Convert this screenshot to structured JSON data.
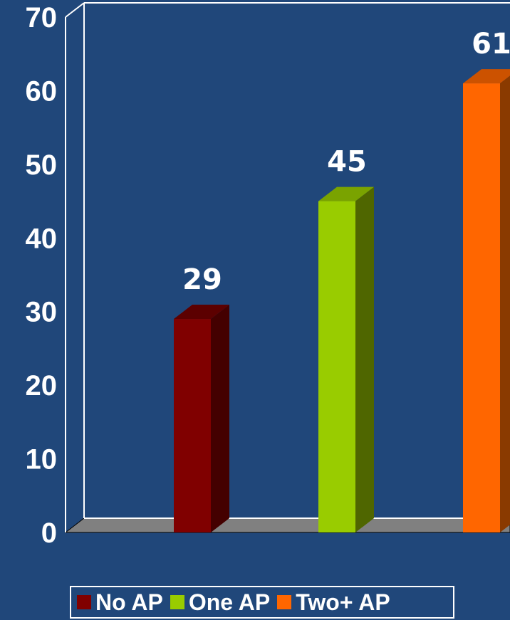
{
  "chart_data": {
    "type": "bar",
    "categories": [
      "No AP",
      "One AP",
      "Two+ AP"
    ],
    "values": [
      29,
      45,
      61
    ],
    "colors": [
      "#800000",
      "#99cc00",
      "#ff6600"
    ],
    "side_colors": [
      "#440000",
      "#4f6600",
      "#8a3a00"
    ],
    "top_colors": [
      "#5c0000",
      "#7aa300",
      "#cc5200"
    ],
    "ylim": [
      0,
      70
    ],
    "yticks": [
      "0",
      "10",
      "20",
      "30",
      "40",
      "50",
      "60",
      "70"
    ],
    "title": "",
    "xlabel": "",
    "ylabel": "",
    "legend_position": "bottom",
    "grid": false,
    "style": "3d-column"
  },
  "legend": {
    "items": [
      {
        "label": "No AP",
        "color": "#800000"
      },
      {
        "label": "One AP",
        "color": "#99cc00"
      },
      {
        "label": "Two+ AP",
        "color": "#ff6600"
      }
    ]
  },
  "colors": {
    "background": "#20477a",
    "floor": "#808080",
    "wall_line": "#ffffff"
  }
}
